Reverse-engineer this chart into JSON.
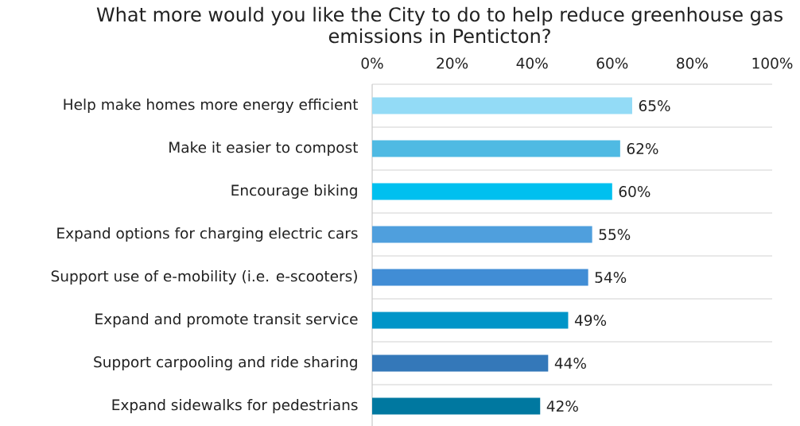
{
  "chart_data": {
    "type": "bar",
    "orientation": "horizontal",
    "title": "What more would you like the City to do to help reduce greenhouse gas emissions in Penticton?",
    "categories": [
      "Help make homes more energy efficient",
      "Make it easier to compost",
      "Encourage biking",
      "Expand options for charging electric cars",
      "Support use of e-mobility (i.e. e-scooters)",
      "Expand and promote transit service",
      "Support carpooling and ride sharing",
      "Expand sidewalks for pedestrians"
    ],
    "values": [
      65,
      62,
      60,
      55,
      54,
      49,
      44,
      42
    ],
    "colors": [
      "#93dbf6",
      "#4fbae3",
      "#00c0ef",
      "#4f9fdd",
      "#418dd5",
      "#0095c8",
      "#3478b9",
      "#0078a0"
    ],
    "value_labels": [
      "65%",
      "62%",
      "60%",
      "55%",
      "54%",
      "49%",
      "44%",
      "42%"
    ],
    "xlim": [
      0,
      100
    ],
    "xticks": [
      {
        "value": 0,
        "label": "0%"
      },
      {
        "value": 20,
        "label": "20%"
      },
      {
        "value": 40,
        "label": "40%"
      },
      {
        "value": 60,
        "label": "60%"
      },
      {
        "value": 80,
        "label": "80%"
      },
      {
        "value": 100,
        "label": "100%"
      }
    ],
    "grid": "y"
  }
}
